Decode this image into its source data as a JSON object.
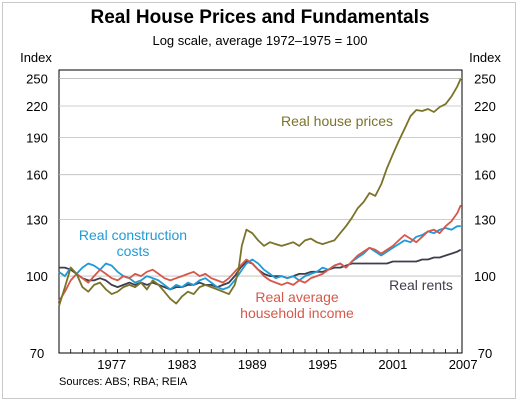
{
  "chart_data": {
    "type": "line",
    "title": "Real House Prices and Fundamentals",
    "subtitle": "Log scale, average 1972–1975 = 100",
    "ylabel_left": "Index",
    "ylabel_right": "Index",
    "y_scale": "log",
    "ylim": [
      70,
      260
    ],
    "xlim": [
      1973,
      2007.4
    ],
    "x_tick_labels": [
      "1977",
      "1983",
      "1989",
      "1995",
      "2001",
      "2007"
    ],
    "y_ticks": [
      70,
      100,
      130,
      160,
      190,
      220,
      250
    ],
    "source": "Sources: ABS; RBA; REIA",
    "legend_placement": "inline labels",
    "series": [
      {
        "name": "Real house prices",
        "color": "#7b7328",
        "label_lines": [
          "Real house prices"
        ],
        "x": [
          1973.0,
          1973.5,
          1974.0,
          1974.5,
          1975.0,
          1975.5,
          1976.0,
          1976.5,
          1977.0,
          1977.5,
          1978.0,
          1978.5,
          1979.0,
          1979.5,
          1980.0,
          1980.5,
          1981.0,
          1981.5,
          1982.0,
          1982.5,
          1983.0,
          1983.5,
          1984.0,
          1984.5,
          1985.0,
          1985.5,
          1986.0,
          1986.5,
          1987.0,
          1987.5,
          1988.0,
          1988.3,
          1988.6,
          1989.0,
          1989.5,
          1990.0,
          1990.5,
          1991.0,
          1991.5,
          1992.0,
          1992.5,
          1993.0,
          1993.5,
          1994.0,
          1994.5,
          1995.0,
          1995.5,
          1996.0,
          1996.5,
          1997.0,
          1997.5,
          1998.0,
          1998.5,
          1999.0,
          1999.5,
          2000.0,
          2000.5,
          2001.0,
          2001.5,
          2002.0,
          2002.5,
          2003.0,
          2003.5,
          2004.0,
          2004.5,
          2005.0,
          2005.5,
          2006.0,
          2006.5,
          2007.0,
          2007.3
        ],
        "y": [
          87,
          95,
          104,
          101,
          95,
          93,
          96,
          97,
          94,
          92,
          93,
          95,
          96,
          95,
          97,
          94,
          98,
          96,
          93,
          90,
          88,
          91,
          93,
          92,
          95,
          96,
          95,
          94,
          93,
          92,
          96,
          102,
          115,
          124,
          122,
          118,
          115,
          117,
          116,
          115,
          116,
          117,
          115,
          118,
          119,
          117,
          116,
          117,
          118,
          122,
          126,
          131,
          137,
          141,
          147,
          145,
          153,
          165,
          176,
          187,
          198,
          210,
          216,
          215,
          217,
          214,
          219,
          222,
          230,
          241,
          250
        ]
      },
      {
        "name": "Real construction costs",
        "color": "#1f9bd7",
        "label_lines": [
          "Real construction",
          "costs"
        ],
        "x": [
          1973.0,
          1973.5,
          1974.0,
          1974.5,
          1975.0,
          1975.5,
          1976.0,
          1976.5,
          1977.0,
          1977.5,
          1978.0,
          1978.5,
          1979.0,
          1979.5,
          1980.0,
          1980.5,
          1981.0,
          1981.5,
          1982.0,
          1982.5,
          1983.0,
          1983.5,
          1984.0,
          1984.5,
          1985.0,
          1985.5,
          1986.0,
          1986.5,
          1987.0,
          1987.5,
          1988.0,
          1988.5,
          1989.0,
          1989.5,
          1990.0,
          1990.5,
          1991.0,
          1991.5,
          1992.0,
          1992.5,
          1993.0,
          1993.5,
          1994.0,
          1994.5,
          1995.0,
          1995.5,
          1996.0,
          1996.5,
          1997.0,
          1997.5,
          1998.0,
          1998.5,
          1999.0,
          1999.5,
          2000.0,
          2000.5,
          2001.0,
          2001.5,
          2002.0,
          2002.5,
          2003.0,
          2003.5,
          2004.0,
          2004.5,
          2005.0,
          2005.5,
          2006.0,
          2006.5,
          2007.0,
          2007.3
        ],
        "y": [
          102,
          100,
          104,
          101,
          104,
          106,
          105,
          103,
          106,
          105,
          102,
          100,
          99,
          97,
          98,
          100,
          99,
          98,
          96,
          94,
          96,
          95,
          97,
          96,
          98,
          99,
          97,
          95,
          94,
          95,
          98,
          102,
          106,
          108,
          106,
          103,
          101,
          99,
          100,
          99,
          100,
          98,
          100,
          101,
          102,
          104,
          103,
          105,
          106,
          104,
          107,
          109,
          111,
          114,
          112,
          110,
          112,
          114,
          116,
          118,
          117,
          120,
          121,
          123,
          122,
          124,
          125,
          124,
          126,
          126
        ]
      },
      {
        "name": "Real average household income",
        "color": "#d6584a",
        "label_lines": [
          "Real average",
          "household income"
        ],
        "x": [
          1973.0,
          1973.5,
          1974.0,
          1974.5,
          1975.0,
          1975.5,
          1976.0,
          1976.5,
          1977.0,
          1977.5,
          1978.0,
          1978.5,
          1979.0,
          1979.5,
          1980.0,
          1980.5,
          1981.0,
          1981.5,
          1982.0,
          1982.5,
          1983.0,
          1983.5,
          1984.0,
          1984.5,
          1985.0,
          1985.5,
          1986.0,
          1986.5,
          1987.0,
          1987.5,
          1988.0,
          1988.5,
          1989.0,
          1989.5,
          1990.0,
          1990.5,
          1991.0,
          1991.5,
          1992.0,
          1992.5,
          1993.0,
          1993.5,
          1994.0,
          1994.5,
          1995.0,
          1995.5,
          1996.0,
          1996.5,
          1997.0,
          1997.5,
          1998.0,
          1998.5,
          1999.0,
          1999.5,
          2000.0,
          2000.5,
          2001.0,
          2001.5,
          2002.0,
          2002.5,
          2003.0,
          2003.5,
          2004.0,
          2004.5,
          2005.0,
          2005.5,
          2006.0,
          2006.5,
          2007.0,
          2007.3
        ],
        "y": [
          89,
          93,
          98,
          101,
          99,
          97,
          100,
          103,
          101,
          99,
          98,
          100,
          99,
          101,
          100,
          102,
          103,
          101,
          99,
          98,
          99,
          100,
          101,
          102,
          100,
          101,
          99,
          98,
          97,
          99,
          102,
          105,
          108,
          106,
          103,
          100,
          98,
          97,
          96,
          97,
          96,
          98,
          97,
          99,
          100,
          101,
          103,
          105,
          106,
          104,
          107,
          110,
          112,
          114,
          113,
          111,
          113,
          115,
          118,
          121,
          119,
          117,
          120,
          123,
          124,
          122,
          126,
          129,
          134,
          139
        ]
      },
      {
        "name": "Real rents",
        "color": "#3e3e4e",
        "label_lines": [
          "Real rents"
        ],
        "x": [
          1973.0,
          1973.5,
          1974.0,
          1974.5,
          1975.0,
          1975.5,
          1976.0,
          1976.5,
          1977.0,
          1977.5,
          1978.0,
          1978.5,
          1979.0,
          1979.5,
          1980.0,
          1980.5,
          1981.0,
          1981.5,
          1982.0,
          1982.5,
          1983.0,
          1983.5,
          1984.0,
          1984.5,
          1985.0,
          1985.5,
          1986.0,
          1986.5,
          1987.0,
          1987.5,
          1988.0,
          1988.5,
          1989.0,
          1989.5,
          1990.0,
          1990.5,
          1991.0,
          1991.5,
          1992.0,
          1992.5,
          1993.0,
          1993.5,
          1994.0,
          1994.5,
          1995.0,
          1995.5,
          1996.0,
          1996.5,
          1997.0,
          1997.5,
          1998.0,
          1998.5,
          1999.0,
          1999.5,
          2000.0,
          2000.5,
          2001.0,
          2001.5,
          2002.0,
          2002.5,
          2003.0,
          2003.5,
          2004.0,
          2004.5,
          2005.0,
          2005.5,
          2006.0,
          2006.5,
          2007.0,
          2007.3
        ],
        "y": [
          104,
          104,
          103,
          101,
          99,
          98,
          98,
          99,
          98,
          96,
          95,
          96,
          97,
          96,
          97,
          96,
          97,
          96,
          95,
          94,
          95,
          95,
          96,
          96,
          97,
          96,
          96,
          95,
          96,
          97,
          100,
          104,
          107,
          106,
          103,
          101,
          100,
          100,
          100,
          99,
          100,
          101,
          101,
          102,
          102,
          102,
          103,
          104,
          104,
          105,
          106,
          106,
          106,
          106,
          106,
          106,
          106,
          107,
          107,
          107,
          107,
          107,
          108,
          108,
          109,
          109,
          110,
          111,
          112,
          113
        ]
      }
    ]
  }
}
